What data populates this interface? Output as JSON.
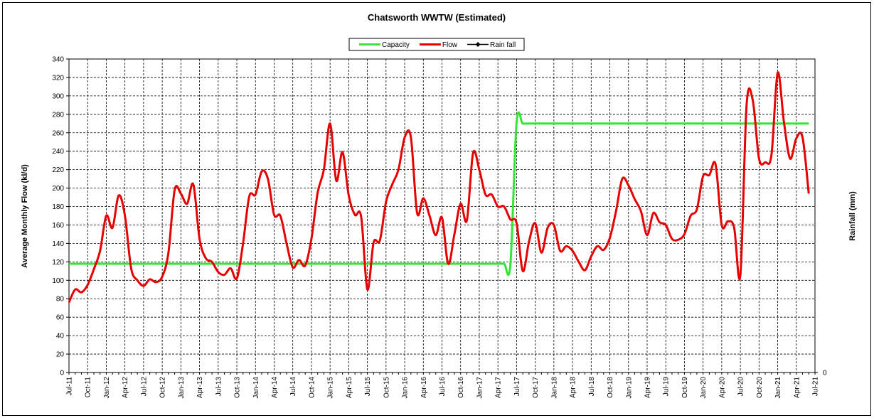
{
  "chart_data": {
    "type": "line",
    "title": "Chatsworth WWTW (Estimated)",
    "y_label": "Average Monthly Flow (kl/d)",
    "y2_label": "Rainfall (mm)",
    "categories": [
      "Jul-11",
      null,
      null,
      "Oct-11",
      null,
      null,
      "Jan-12",
      null,
      null,
      "Apr-12",
      null,
      null,
      "Jul-12",
      null,
      null,
      "Oct-12",
      null,
      null,
      "Jan-13",
      null,
      null,
      "Apr-13",
      null,
      null,
      "Jul-13",
      null,
      null,
      "Oct-13",
      null,
      null,
      "Jan-14",
      null,
      null,
      "Apr-14",
      null,
      null,
      "Jul-14",
      null,
      null,
      "Oct-14",
      null,
      null,
      "Jan-15",
      null,
      null,
      "Apr-15",
      null,
      null,
      "Jul-15",
      null,
      null,
      "Oct-15",
      null,
      null,
      "Jan-16",
      null,
      null,
      "Apr-16",
      null,
      null,
      "Jul-16",
      null,
      null,
      "Oct-16",
      null,
      null,
      "Jan-17",
      null,
      null,
      "Apr-17",
      null,
      null,
      "Jul-17",
      null,
      null,
      "Oct-17",
      null,
      null,
      "Jan-18",
      null,
      null,
      "Apr-18",
      null,
      null,
      "Jul-18",
      null,
      null,
      "Oct-18",
      null,
      null,
      "Jan-19",
      null,
      null,
      "Apr-19",
      null,
      null,
      "Jul-19",
      null,
      null,
      "Oct-19",
      null,
      null,
      "Jan-20",
      null,
      null,
      "Apr-20",
      null,
      null,
      "Jul-20",
      null,
      null,
      "Oct-20",
      null,
      null,
      "Jan-21",
      null,
      null,
      "Apr-21",
      null,
      null,
      "Jul-21"
    ],
    "series": [
      {
        "name": "Capacity",
        "color": "#33e633",
        "values": [
          118,
          118,
          118,
          118,
          118,
          118,
          118,
          118,
          118,
          118,
          118,
          118,
          118,
          118,
          118,
          118,
          118,
          118,
          118,
          118,
          118,
          118,
          118,
          118,
          118,
          118,
          118,
          118,
          118,
          118,
          118,
          118,
          118,
          118,
          118,
          118,
          118,
          118,
          118,
          118,
          118,
          118,
          118,
          118,
          118,
          118,
          118,
          118,
          118,
          118,
          118,
          118,
          118,
          118,
          118,
          118,
          118,
          118,
          118,
          118,
          118,
          118,
          118,
          118,
          118,
          118,
          118,
          118,
          118,
          118,
          118,
          117,
          271,
          270,
          270,
          270,
          270,
          270,
          270,
          270,
          270,
          270,
          270,
          270,
          270,
          270,
          270,
          270,
          270,
          270,
          270,
          270,
          270,
          270,
          270,
          270,
          270,
          270,
          270,
          270,
          270,
          270,
          270,
          270,
          270,
          270,
          270,
          270,
          270,
          270,
          270,
          270,
          270,
          270,
          270,
          270,
          270,
          270,
          270,
          270,
          null
        ]
      },
      {
        "name": "Flow",
        "color": "#e60000",
        "values": [
          76,
          90,
          87,
          95,
          112,
          132,
          170,
          157,
          192,
          170,
          113,
          100,
          94,
          101,
          98,
          104,
          130,
          198,
          194,
          183,
          204,
          145,
          124,
          120,
          109,
          106,
          113,
          102,
          140,
          191,
          193,
          218,
          210,
          171,
          170,
          140,
          114,
          122,
          116,
          145,
          195,
          220,
          270,
          208,
          239,
          192,
          171,
          169,
          90,
          141,
          143,
          185,
          204,
          220,
          255,
          255,
          173,
          189,
          170,
          149,
          168,
          118,
          150,
          183,
          165,
          238,
          220,
          193,
          193,
          180,
          180,
          166,
          162,
          110,
          142,
          162,
          130,
          157,
          160,
          132,
          137,
          132,
          120,
          111,
          126,
          137,
          133,
          146,
          175,
          210,
          203,
          188,
          175,
          149,
          173,
          163,
          160,
          145,
          144,
          150,
          170,
          177,
          213,
          214,
          226,
          160,
          164,
          157,
          106,
          290,
          295,
          232,
          228,
          236,
          325,
          272,
          232,
          254,
          255,
          194,
          null
        ]
      },
      {
        "name": "Rain fall",
        "color": "#000000",
        "axis": "y2",
        "values": [
          null,
          null,
          null,
          null,
          null,
          null,
          null,
          null,
          null,
          null,
          null,
          null,
          null,
          null,
          null,
          null,
          null,
          null,
          null,
          null,
          null,
          null,
          null,
          null,
          null,
          null,
          null,
          null,
          null,
          null,
          null,
          null,
          null,
          null,
          null,
          null,
          null,
          null,
          null,
          null,
          null,
          null,
          null,
          null,
          null,
          null,
          null,
          null,
          null,
          null,
          null,
          null,
          null,
          null,
          null,
          null,
          null,
          null,
          null,
          null,
          null,
          null,
          null,
          null,
          null,
          null,
          null,
          null,
          null,
          null,
          null,
          null,
          null,
          null,
          null,
          null,
          null,
          null,
          null,
          null,
          null,
          null,
          null,
          null,
          null,
          null,
          null,
          null,
          null,
          null,
          null,
          null,
          null,
          null,
          null,
          null,
          null,
          null,
          null,
          null,
          null,
          null,
          null,
          null,
          null,
          null,
          null,
          null,
          null,
          null,
          null,
          null,
          null,
          null,
          null,
          null,
          null,
          null,
          null,
          null,
          null
        ]
      }
    ],
    "ylim": [
      0,
      340
    ],
    "yticks": [
      0,
      20,
      40,
      60,
      80,
      100,
      120,
      140,
      160,
      180,
      200,
      220,
      240,
      260,
      280,
      300,
      320,
      340
    ],
    "y2lim": [
      0,
      1
    ],
    "y2ticks": [
      0
    ],
    "grid": true,
    "legend": "top"
  }
}
